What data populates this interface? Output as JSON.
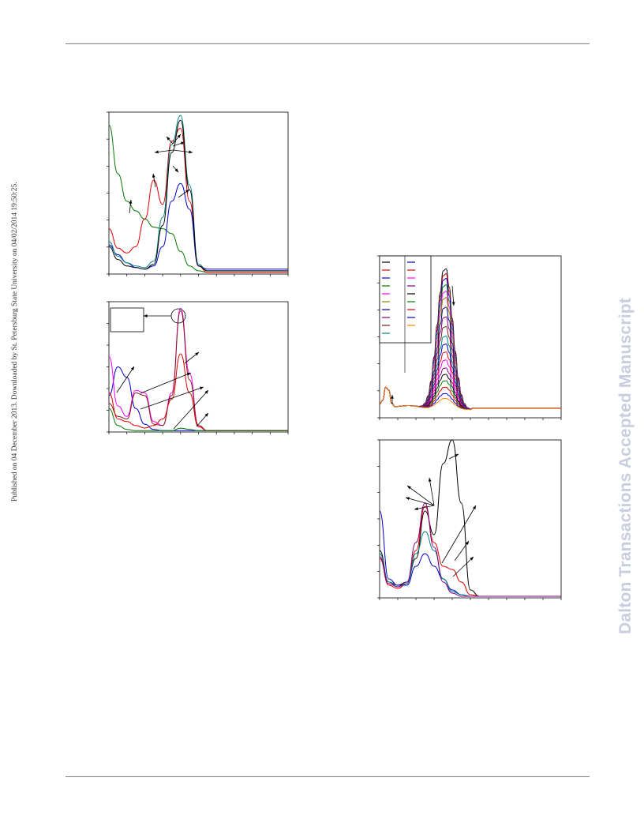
{
  "header": {
    "rule": true
  },
  "side_note": "Published on 04 December 2013. Downloaded by St. Petersburg State University on 04/02/2014 19:50:25.",
  "watermark": "Dalton Transactions Accepted Manuscript",
  "colors": {
    "black": "#000000",
    "red": "#e00000",
    "blue": "#0000cc",
    "green": "#007a00",
    "teal": "#008080",
    "magenta": "#ff00ff",
    "purple": "#800080",
    "brown": "#7f1d1d",
    "olive": "#808000",
    "orange": "#ff8000",
    "watermark": "#c9cde0"
  },
  "chart_data": [
    {
      "type": "line",
      "title": "",
      "xlabel": "",
      "ylabel": "",
      "x": [
        0,
        5,
        10,
        15,
        20,
        25,
        30,
        35,
        40,
        45,
        50,
        55,
        60,
        65,
        70,
        75,
        80,
        85,
        90,
        95,
        100
      ],
      "series": [
        {
          "color": "#007a00",
          "values": [
            0.92,
            0.62,
            0.45,
            0.39,
            0.34,
            0.29,
            0.28,
            0.25,
            0.14,
            0.05,
            0.02,
            0.01,
            0.01,
            0.01,
            0.01,
            0.01,
            0.01,
            0.01,
            0.01,
            0.01,
            0.01
          ]
        },
        {
          "color": "#e00000",
          "values": [
            0.28,
            0.16,
            0.13,
            0.17,
            0.34,
            0.58,
            0.43,
            0.82,
            0.9,
            0.45,
            0.05,
            0.01,
            0.01,
            0.01,
            0.01,
            0.01,
            0.01,
            0.01,
            0.01,
            0.01,
            0.01
          ]
        },
        {
          "color": "#0000cc",
          "values": [
            0.18,
            0.12,
            0.07,
            0.04,
            0.03,
            0.05,
            0.17,
            0.45,
            0.56,
            0.4,
            0.05,
            0.03,
            0.03,
            0.03,
            0.03,
            0.03,
            0.03,
            0.03,
            0.03,
            0.03,
            0.03
          ]
        },
        {
          "color": "#008080",
          "values": [
            0.2,
            0.11,
            0.07,
            0.05,
            0.04,
            0.08,
            0.35,
            0.8,
            0.98,
            0.55,
            0.06,
            0.02,
            0.02,
            0.02,
            0.02,
            0.02,
            0.02,
            0.02,
            0.02,
            0.02,
            0.02
          ]
        },
        {
          "color": "#000000",
          "values": [
            0.17,
            0.09,
            0.05,
            0.04,
            0.03,
            0.06,
            0.3,
            0.75,
            0.95,
            0.52,
            0.05,
            0.02,
            0.02,
            0.02,
            0.02,
            0.02,
            0.02,
            0.02,
            0.02,
            0.02,
            0.02
          ]
        }
      ]
    },
    {
      "type": "line",
      "title": "",
      "xlabel": "",
      "ylabel": "",
      "x": [
        0,
        5,
        10,
        15,
        20,
        25,
        30,
        35,
        40,
        45,
        50,
        55,
        60,
        65,
        70,
        75,
        80,
        85,
        90,
        95,
        100
      ],
      "series": [
        {
          "color": "#0000cc",
          "values": [
            0.28,
            0.5,
            0.42,
            0.18,
            0.06,
            0.02,
            0.01,
            0.01,
            0.01,
            0.01,
            0.01,
            0.01,
            0.01,
            0.01,
            0.01,
            0.01,
            0.01,
            0.01,
            0.01,
            0.01,
            0.01
          ]
        },
        {
          "color": "#ff00ff",
          "values": [
            0.58,
            0.2,
            0.12,
            0.32,
            0.3,
            0.08,
            0.05,
            0.3,
            0.95,
            0.45,
            0.05,
            0.01,
            0.01,
            0.01,
            0.01,
            0.01,
            0.01,
            0.01,
            0.01,
            0.01,
            0.01
          ]
        },
        {
          "color": "#7f1d1d",
          "values": [
            0.22,
            0.12,
            0.1,
            0.3,
            0.28,
            0.06,
            0.05,
            0.28,
            0.93,
            0.4,
            0.05,
            0.01,
            0.01,
            0.01,
            0.01,
            0.01,
            0.01,
            0.01,
            0.01,
            0.01,
            0.01
          ]
        },
        {
          "color": "#e00000",
          "values": [
            0.3,
            0.1,
            0.08,
            0.05,
            0.03,
            0.05,
            0.1,
            0.25,
            0.6,
            0.3,
            0.04,
            0.01,
            0.01,
            0.01,
            0.01,
            0.01,
            0.01,
            0.01,
            0.01,
            0.01,
            0.01
          ]
        },
        {
          "color": "#007a00",
          "values": [
            0.18,
            0.05,
            0.02,
            0.01,
            0.01,
            0.01,
            0.01,
            0.01,
            0.03,
            0.02,
            0.01,
            0.01,
            0.01,
            0.01,
            0.01,
            0.01,
            0.01,
            0.01,
            0.01,
            0.01,
            0.01
          ]
        }
      ]
    },
    {
      "type": "line",
      "title": "",
      "xlabel": "",
      "ylabel": "",
      "legend": "top-left",
      "x": [
        0,
        5,
        10,
        15,
        20,
        25,
        30,
        35,
        40,
        45,
        50,
        55,
        60,
        65,
        70,
        75,
        80,
        85,
        90,
        95,
        100
      ],
      "peak_heights": [
        0.88,
        0.85,
        0.82,
        0.78,
        0.74,
        0.7,
        0.64,
        0.58,
        0.52,
        0.46,
        0.41,
        0.36,
        0.31,
        0.26,
        0.22,
        0.18,
        0.14,
        0.1,
        0.07
      ],
      "series_colors": [
        "#000000",
        "#e00000",
        "#0000cc",
        "#007a00",
        "#ff00ff",
        "#808000",
        "#000080",
        "#800080",
        "#7f1d1d",
        "#008080",
        "#0000cc",
        "#e00000",
        "#ff00ff",
        "#800080",
        "#000000",
        "#007a00",
        "#e00000",
        "#0000cc",
        "#ff8000"
      ]
    },
    {
      "type": "line",
      "title": "",
      "xlabel": "",
      "ylabel": "",
      "x": [
        0,
        5,
        10,
        15,
        20,
        25,
        30,
        35,
        40,
        45,
        50,
        55,
        60,
        65,
        70,
        75,
        80,
        85,
        90,
        95,
        100
      ],
      "series": [
        {
          "color": "#000000",
          "values": [
            0.3,
            0.1,
            0.08,
            0.1,
            0.25,
            0.55,
            0.4,
            0.85,
            1.0,
            0.6,
            0.05,
            0.01,
            0.01,
            0.01,
            0.01,
            0.01,
            0.01,
            0.01,
            0.01,
            0.01,
            0.01
          ]
        },
        {
          "color": "#e00000",
          "values": [
            0.25,
            0.08,
            0.06,
            0.09,
            0.3,
            0.58,
            0.35,
            0.2,
            0.18,
            0.1,
            0.02,
            0.01,
            0.01,
            0.01,
            0.01,
            0.01,
            0.01,
            0.01,
            0.01,
            0.01,
            0.01
          ]
        },
        {
          "color": "#0000cc",
          "values": [
            0.55,
            0.12,
            0.08,
            0.08,
            0.2,
            0.28,
            0.2,
            0.12,
            0.05,
            0.02,
            0.01,
            0.01,
            0.01,
            0.01,
            0.01,
            0.01,
            0.01,
            0.01,
            0.01,
            0.01,
            0.01
          ]
        },
        {
          "color": "#008080",
          "values": [
            0.28,
            0.1,
            0.07,
            0.09,
            0.28,
            0.42,
            0.3,
            0.12,
            0.04,
            0.02,
            0.01,
            0.01,
            0.01,
            0.01,
            0.01,
            0.01,
            0.01,
            0.01,
            0.01,
            0.01,
            0.01
          ]
        },
        {
          "color": "#800080",
          "values": [
            0.26,
            0.09,
            0.07,
            0.1,
            0.35,
            0.6,
            0.32,
            0.1,
            0.03,
            0.01,
            0.01,
            0.01,
            0.01,
            0.01,
            0.01,
            0.01,
            0.01,
            0.01,
            0.01,
            0.01,
            0.01
          ]
        }
      ]
    }
  ]
}
